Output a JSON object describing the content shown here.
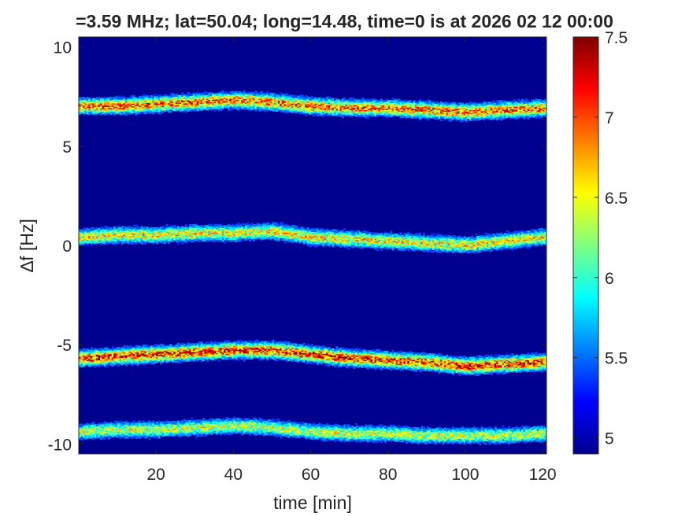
{
  "chart_data": {
    "type": "heatmap",
    "title": "=3.59 MHz;  lat=50.04; long=14.48, time=0 is at 2026 02 12 00:00",
    "xlabel": "time [min]",
    "ylabel": "∆f [Hz]",
    "xlim": [
      0,
      121
    ],
    "ylim": [
      -10.5,
      10.5
    ],
    "x_ticks": [
      20,
      40,
      60,
      80,
      100,
      120
    ],
    "y_ticks": [
      -10,
      -5,
      0,
      5,
      10
    ],
    "colorbar": {
      "range": [
        4.9,
        7.5
      ],
      "ticks": [
        5,
        5.5,
        6,
        6.5,
        7,
        7.5
      ],
      "colormap": "jet"
    },
    "background_level": 5.0,
    "series": [
      {
        "x": [
          0,
          10,
          20,
          30,
          40,
          50,
          60,
          70,
          80,
          90,
          100,
          110,
          120
        ],
        "y": [
          7.0,
          7.0,
          7.1,
          7.2,
          7.3,
          7.2,
          7.0,
          6.9,
          6.9,
          6.8,
          6.7,
          6.8,
          6.9
        ]
      },
      {
        "x": [
          0,
          10,
          20,
          30,
          40,
          50,
          60,
          70,
          80,
          90,
          100,
          110,
          120
        ],
        "y": [
          0.4,
          0.5,
          0.5,
          0.6,
          0.6,
          0.7,
          0.4,
          0.3,
          0.2,
          0.1,
          0.0,
          0.2,
          0.4
        ]
      },
      {
        "x": [
          0,
          10,
          20,
          30,
          40,
          50,
          60,
          70,
          80,
          90,
          100,
          110,
          120
        ],
        "y": [
          -5.7,
          -5.6,
          -5.5,
          -5.4,
          -5.3,
          -5.3,
          -5.5,
          -5.7,
          -5.8,
          -5.9,
          -6.1,
          -6.0,
          -5.9
        ]
      },
      {
        "x": [
          0,
          10,
          20,
          30,
          40,
          50,
          60,
          70,
          80,
          90,
          100,
          110,
          120
        ],
        "y": [
          -9.4,
          -9.3,
          -9.3,
          -9.2,
          -9.1,
          -9.2,
          -9.4,
          -9.5,
          -9.5,
          -9.6,
          -9.6,
          -9.6,
          -9.5
        ]
      }
    ],
    "line_peak": [
      7.2,
      6.8,
      7.4,
      6.6
    ]
  }
}
